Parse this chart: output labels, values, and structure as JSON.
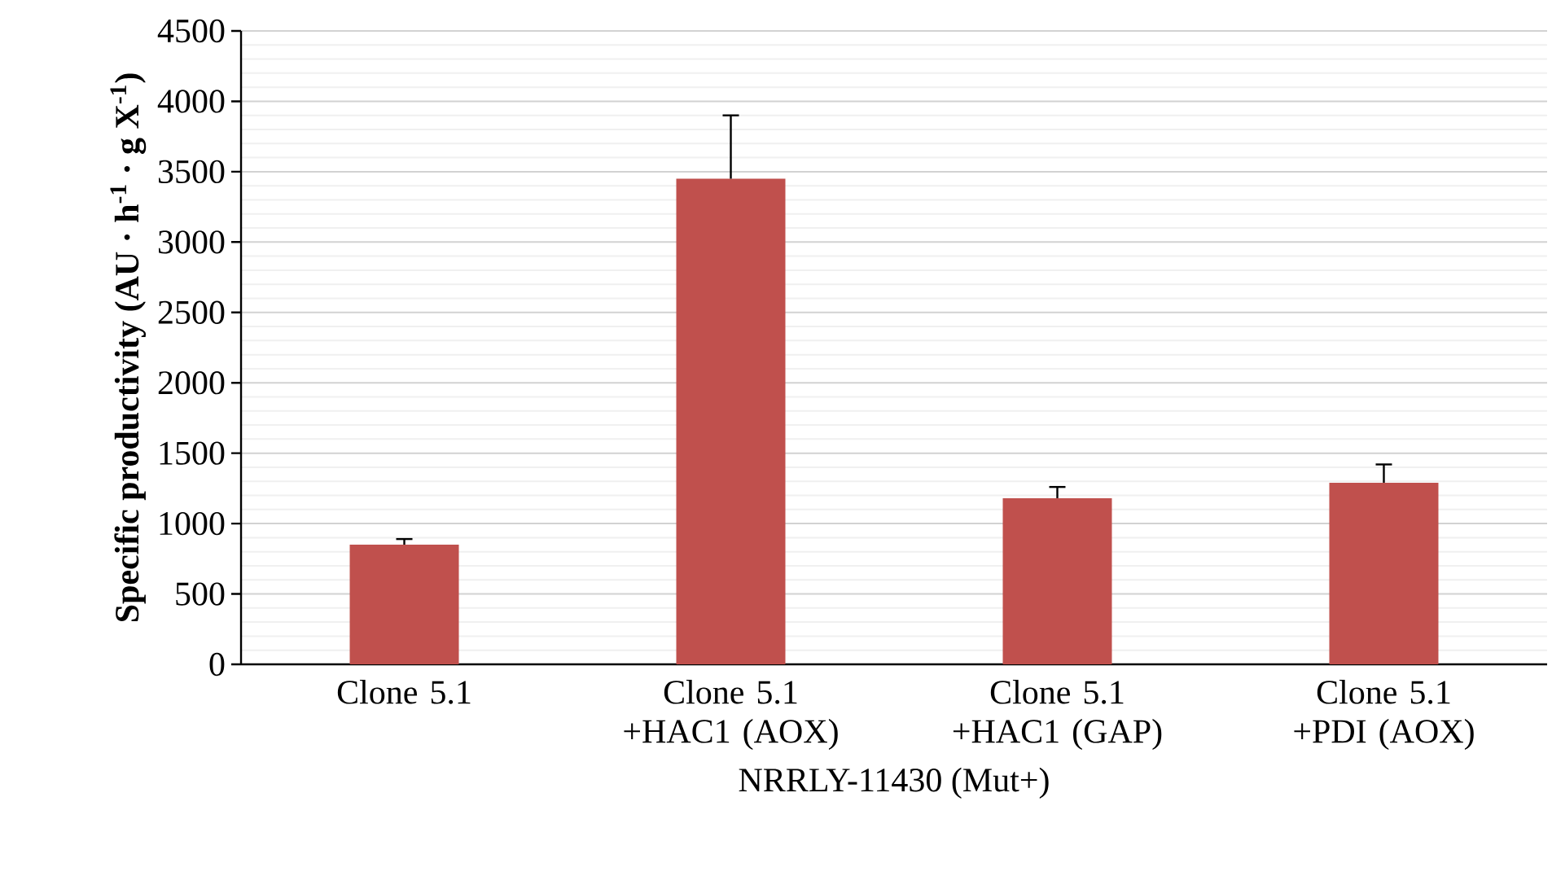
{
  "chart_data": {
    "type": "bar",
    "categories": [
      "Clone 5.1",
      "Clone 5.1 +HAC1 (AOX)",
      "Clone 5.1 +HAC1 (GAP)",
      "Clone 5.1 +PDI (AOX)"
    ],
    "values": [
      850,
      3450,
      1180,
      1290
    ],
    "errors": [
      [
        850,
        890
      ],
      [
        3450,
        3900
      ],
      [
        1180,
        1260
      ],
      [
        1290,
        1420
      ]
    ],
    "color": "#c0504d",
    "ylim": [
      0,
      4500
    ],
    "yticks": [
      0,
      500,
      1000,
      1500,
      2000,
      2500,
      3000,
      3500,
      4000,
      4500
    ],
    "ylabel": "Specific productivity (AU · h$^{-1}$ · g X$^{-1}$)",
    "xlabel": "NRRLY-11430 (Mut+)",
    "grid": "y"
  }
}
